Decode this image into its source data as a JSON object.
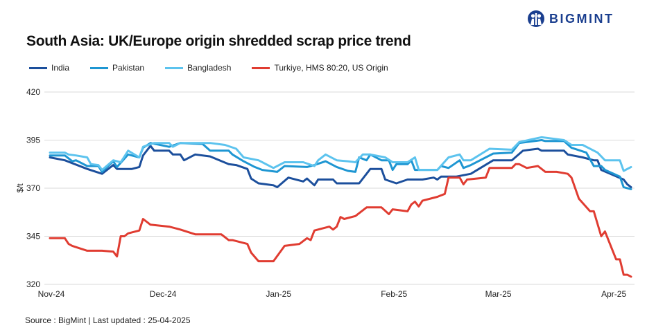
{
  "title": "South Asia: UK/Europe origin shredded scrap price trend",
  "source": "Source : BigMint | Last updated : 25-04-2025",
  "logo": {
    "text": "BIGMINT",
    "color": "#1b3f8f"
  },
  "chart_data": {
    "type": "line",
    "title": "South Asia: UK/Europe origin shredded scrap price trend",
    "xlabel": "",
    "ylabel": "$/t",
    "ylim": [
      320,
      420
    ],
    "yticks": [
      320,
      345,
      370,
      395,
      420
    ],
    "xlim": [
      "2024-11-01",
      "2025-04-06"
    ],
    "xticks": [
      {
        "date": "2024-11-01",
        "label": "Nov-24"
      },
      {
        "date": "2024-12-01",
        "label": "Dec-24"
      },
      {
        "date": "2025-01-01",
        "label": "Jan-25"
      },
      {
        "date": "2025-02-01",
        "label": "Feb-25"
      },
      {
        "date": "2025-03-01",
        "label": "Mar-25"
      },
      {
        "date": "2025-04-01",
        "label": "Apr-25"
      }
    ],
    "grid": "horizontal",
    "legend_position": "top-left",
    "series": [
      {
        "name": "India",
        "color": "#1c4f9c",
        "points": [
          [
            "2024-11-01",
            386
          ],
          [
            "2024-11-05",
            384.5
          ],
          [
            "2024-11-11",
            380
          ],
          [
            "2024-11-15",
            377.5
          ],
          [
            "2024-11-18",
            382
          ],
          [
            "2024-11-19",
            380
          ],
          [
            "2024-11-23",
            380
          ],
          [
            "2024-11-25",
            381
          ],
          [
            "2024-11-26",
            387
          ],
          [
            "2024-11-28",
            392
          ],
          [
            "2024-11-29",
            389.5
          ],
          [
            "2024-12-03",
            389.5
          ],
          [
            "2024-12-04",
            387.5
          ],
          [
            "2024-12-06",
            387.5
          ],
          [
            "2024-12-07",
            384.5
          ],
          [
            "2024-12-10",
            387.5
          ],
          [
            "2024-12-14",
            386.5
          ],
          [
            "2024-12-19",
            382.5
          ],
          [
            "2024-12-21",
            382
          ],
          [
            "2024-12-24",
            380
          ],
          [
            "2024-12-25",
            375
          ],
          [
            "2024-12-27",
            372.5
          ],
          [
            "2024-12-31",
            371.5
          ],
          [
            "2025-01-01",
            370.5
          ],
          [
            "2025-01-04",
            375.5
          ],
          [
            "2025-01-08",
            373.5
          ],
          [
            "2025-01-09",
            375
          ],
          [
            "2025-01-11",
            371.5
          ],
          [
            "2025-01-12",
            374.5
          ],
          [
            "2025-01-16",
            374.5
          ],
          [
            "2025-01-17",
            372.5
          ],
          [
            "2025-01-23",
            372.5
          ],
          [
            "2025-01-26",
            380
          ],
          [
            "2025-01-29",
            380
          ],
          [
            "2025-01-30",
            374.5
          ],
          [
            "2025-02-02",
            372.5
          ],
          [
            "2025-02-05",
            374.5
          ],
          [
            "2025-02-09",
            374.5
          ],
          [
            "2025-02-12",
            375.5
          ],
          [
            "2025-02-13",
            374.5
          ],
          [
            "2025-02-14",
            376
          ],
          [
            "2025-02-18",
            376
          ],
          [
            "2025-02-22",
            377.5
          ],
          [
            "2025-02-28",
            384.5
          ],
          [
            "2025-03-05",
            384.5
          ],
          [
            "2025-03-08",
            389.5
          ],
          [
            "2025-03-12",
            390.5
          ],
          [
            "2025-03-13",
            389.5
          ],
          [
            "2025-03-19",
            389.5
          ],
          [
            "2025-03-20",
            387.5
          ],
          [
            "2025-03-24",
            386
          ],
          [
            "2025-03-27",
            384.5
          ],
          [
            "2025-03-28",
            384.5
          ],
          [
            "2025-03-29",
            379.5
          ],
          [
            "2025-04-04",
            374.5
          ],
          [
            "2025-04-05",
            372
          ],
          [
            "2025-04-06",
            370.5
          ]
        ]
      },
      {
        "name": "Pakistan",
        "color": "#1e96d2",
        "points": [
          [
            "2024-11-01",
            387
          ],
          [
            "2024-11-05",
            387
          ],
          [
            "2024-11-07",
            384
          ],
          [
            "2024-11-08",
            384.5
          ],
          [
            "2024-11-11",
            381.5
          ],
          [
            "2024-11-14",
            381.5
          ],
          [
            "2024-11-15",
            378.5
          ],
          [
            "2024-11-18",
            384
          ],
          [
            "2024-11-19",
            381
          ],
          [
            "2024-11-22",
            387.5
          ],
          [
            "2024-11-25",
            386
          ],
          [
            "2024-11-26",
            391
          ],
          [
            "2024-11-28",
            393.5
          ],
          [
            "2024-12-03",
            391.5
          ],
          [
            "2024-12-06",
            393.5
          ],
          [
            "2024-12-12",
            393
          ],
          [
            "2024-12-14",
            389.5
          ],
          [
            "2024-12-19",
            389.5
          ],
          [
            "2024-12-20",
            387.5
          ],
          [
            "2024-12-23",
            384
          ],
          [
            "2024-12-26",
            381
          ],
          [
            "2024-12-28",
            379.5
          ],
          [
            "2025-01-01",
            378.5
          ],
          [
            "2025-01-03",
            381.5
          ],
          [
            "2025-01-09",
            381
          ],
          [
            "2025-01-11",
            382
          ],
          [
            "2025-01-14",
            384
          ],
          [
            "2025-01-17",
            381
          ],
          [
            "2025-01-20",
            379
          ],
          [
            "2025-01-22",
            378.5
          ],
          [
            "2025-01-23",
            386
          ],
          [
            "2025-01-25",
            384.5
          ],
          [
            "2025-01-26",
            387.5
          ],
          [
            "2025-01-29",
            384.5
          ],
          [
            "2025-01-31",
            384.5
          ],
          [
            "2025-02-01",
            379.5
          ],
          [
            "2025-02-02",
            382.5
          ],
          [
            "2025-02-05",
            382.5
          ],
          [
            "2025-02-06",
            384.5
          ],
          [
            "2025-02-07",
            379.5
          ],
          [
            "2025-02-13",
            379.5
          ],
          [
            "2025-02-14",
            381.5
          ],
          [
            "2025-02-16",
            380.5
          ],
          [
            "2025-02-19",
            384.5
          ],
          [
            "2025-02-20",
            380.5
          ],
          [
            "2025-02-22",
            382
          ],
          [
            "2025-02-28",
            388
          ],
          [
            "2025-03-05",
            388.5
          ],
          [
            "2025-03-07",
            393.5
          ],
          [
            "2025-03-13",
            395
          ],
          [
            "2025-03-14",
            394.5
          ],
          [
            "2025-03-19",
            394.5
          ],
          [
            "2025-03-21",
            391
          ],
          [
            "2025-03-25",
            388.5
          ],
          [
            "2025-03-27",
            381.5
          ],
          [
            "2025-03-29",
            381.5
          ],
          [
            "2025-03-30",
            379.5
          ],
          [
            "2025-04-03",
            376
          ],
          [
            "2025-04-04",
            370.5
          ],
          [
            "2025-04-06",
            369.5
          ]
        ]
      },
      {
        "name": "Bangladesh",
        "color": "#5cc3ee",
        "points": [
          [
            "2024-11-01",
            388.5
          ],
          [
            "2024-11-05",
            388.5
          ],
          [
            "2024-11-06",
            387.5
          ],
          [
            "2024-11-08",
            387
          ],
          [
            "2024-11-11",
            386
          ],
          [
            "2024-11-12",
            382.5
          ],
          [
            "2024-11-14",
            382
          ],
          [
            "2024-11-15",
            379.5
          ],
          [
            "2024-11-18",
            384.5
          ],
          [
            "2024-11-20",
            383.5
          ],
          [
            "2024-11-22",
            389.5
          ],
          [
            "2024-11-25",
            386
          ],
          [
            "2024-11-26",
            391.5
          ],
          [
            "2024-11-29",
            393.5
          ],
          [
            "2024-12-03",
            393.5
          ],
          [
            "2024-12-04",
            391.5
          ],
          [
            "2024-12-06",
            393.5
          ],
          [
            "2024-12-14",
            393.5
          ],
          [
            "2024-12-18",
            392.5
          ],
          [
            "2024-12-21",
            390.5
          ],
          [
            "2024-12-23",
            386
          ],
          [
            "2024-12-27",
            384.5
          ],
          [
            "2024-12-31",
            380.5
          ],
          [
            "2025-01-03",
            383.5
          ],
          [
            "2025-01-08",
            383.5
          ],
          [
            "2025-01-11",
            381.5
          ],
          [
            "2025-01-12",
            384.5
          ],
          [
            "2025-01-14",
            387.5
          ],
          [
            "2025-01-17",
            384.5
          ],
          [
            "2025-01-20",
            384
          ],
          [
            "2025-01-22",
            383.5
          ],
          [
            "2025-01-24",
            387.5
          ],
          [
            "2025-01-26",
            387.5
          ],
          [
            "2025-01-30",
            386
          ],
          [
            "2025-02-01",
            383.5
          ],
          [
            "2025-02-05",
            383.5
          ],
          [
            "2025-02-07",
            386
          ],
          [
            "2025-02-08",
            379.5
          ],
          [
            "2025-02-13",
            379.5
          ],
          [
            "2025-02-16",
            386
          ],
          [
            "2025-02-19",
            387.5
          ],
          [
            "2025-02-20",
            384.5
          ],
          [
            "2025-02-22",
            384.5
          ],
          [
            "2025-02-27",
            390.5
          ],
          [
            "2025-03-05",
            390
          ],
          [
            "2025-03-07",
            394
          ],
          [
            "2025-03-13",
            396.5
          ],
          [
            "2025-03-19",
            395
          ],
          [
            "2025-03-21",
            392.5
          ],
          [
            "2025-03-24",
            392.5
          ],
          [
            "2025-03-28",
            388.5
          ],
          [
            "2025-03-30",
            384.5
          ],
          [
            "2025-04-03",
            384.5
          ],
          [
            "2025-04-04",
            379
          ],
          [
            "2025-04-06",
            381
          ]
        ]
      },
      {
        "name": "Turkiye, HMS 80:20, US Origin",
        "color": "#e03c31",
        "points": [
          [
            "2024-11-01",
            344
          ],
          [
            "2024-11-05",
            344
          ],
          [
            "2024-11-06",
            341
          ],
          [
            "2024-11-07",
            340
          ],
          [
            "2024-11-11",
            337.5
          ],
          [
            "2024-11-15",
            337.5
          ],
          [
            "2024-11-18",
            337
          ],
          [
            "2024-11-19",
            334.5
          ],
          [
            "2024-11-20",
            345
          ],
          [
            "2024-11-21",
            345
          ],
          [
            "2024-11-22",
            346.5
          ],
          [
            "2024-11-25",
            348
          ],
          [
            "2024-11-26",
            354
          ],
          [
            "2024-11-28",
            351
          ],
          [
            "2024-12-03",
            350
          ],
          [
            "2024-12-06",
            348.5
          ],
          [
            "2024-12-10",
            346
          ],
          [
            "2024-12-17",
            346
          ],
          [
            "2024-12-19",
            343
          ],
          [
            "2024-12-20",
            343
          ],
          [
            "2024-12-24",
            341
          ],
          [
            "2024-12-25",
            336.5
          ],
          [
            "2024-12-27",
            332
          ],
          [
            "2024-12-31",
            332
          ],
          [
            "2025-01-03",
            340
          ],
          [
            "2025-01-07",
            341
          ],
          [
            "2025-01-09",
            344
          ],
          [
            "2025-01-10",
            343
          ],
          [
            "2025-01-11",
            348
          ],
          [
            "2025-01-15",
            350
          ],
          [
            "2025-01-16",
            348.5
          ],
          [
            "2025-01-17",
            350
          ],
          [
            "2025-01-18",
            355
          ],
          [
            "2025-01-19",
            354
          ],
          [
            "2025-01-22",
            355.5
          ],
          [
            "2025-01-25",
            360
          ],
          [
            "2025-01-29",
            360
          ],
          [
            "2025-01-31",
            356.5
          ],
          [
            "2025-02-01",
            359
          ],
          [
            "2025-02-05",
            358
          ],
          [
            "2025-02-06",
            361.5
          ],
          [
            "2025-02-07",
            363
          ],
          [
            "2025-02-08",
            360.5
          ],
          [
            "2025-02-09",
            363.5
          ],
          [
            "2025-02-13",
            365.5
          ],
          [
            "2025-02-15",
            367
          ],
          [
            "2025-02-16",
            375.5
          ],
          [
            "2025-02-19",
            375.5
          ],
          [
            "2025-02-20",
            372
          ],
          [
            "2025-02-21",
            374.5
          ],
          [
            "2025-02-26",
            375.5
          ],
          [
            "2025-02-27",
            380.5
          ],
          [
            "2025-03-05",
            380.5
          ],
          [
            "2025-03-06",
            382.5
          ],
          [
            "2025-03-07",
            382.5
          ],
          [
            "2025-03-09",
            380.5
          ],
          [
            "2025-03-12",
            381.5
          ],
          [
            "2025-03-14",
            378.5
          ],
          [
            "2025-03-17",
            378.5
          ],
          [
            "2025-03-20",
            377.5
          ],
          [
            "2025-03-21",
            375.5
          ],
          [
            "2025-03-23",
            364.5
          ],
          [
            "2025-03-26",
            358
          ],
          [
            "2025-03-27",
            358
          ],
          [
            "2025-03-29",
            345
          ],
          [
            "2025-03-30",
            347.5
          ],
          [
            "2025-04-02",
            333
          ],
          [
            "2025-04-03",
            333
          ],
          [
            "2025-04-04",
            325
          ],
          [
            "2025-04-05",
            325
          ],
          [
            "2025-04-06",
            324
          ]
        ]
      }
    ]
  }
}
